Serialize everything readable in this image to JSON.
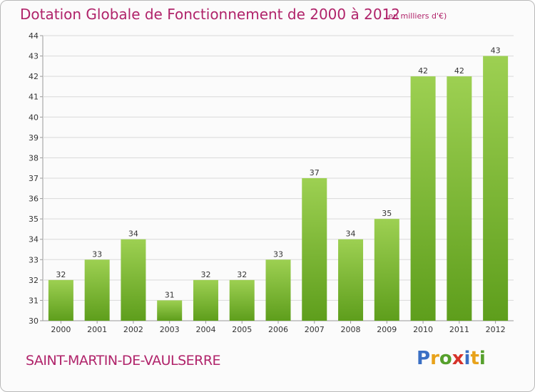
{
  "header": {
    "title": "Dotation Globale de Fonctionnement de 2000 à 2012",
    "unit": "(en milliers d'€)"
  },
  "footer": {
    "commune": "SAINT-MARTIN-DE-VAULSERRE",
    "logo_letters": [
      "P",
      "r",
      "o",
      "x",
      "i",
      "t",
      "i"
    ],
    "logo_colors": [
      "#3a6fc4",
      "#e8a21a",
      "#56a02c",
      "#d6322a",
      "#3a6fc4",
      "#e8a21a",
      "#56a02c"
    ]
  },
  "chart_data": {
    "type": "bar",
    "categories": [
      "2000",
      "2001",
      "2002",
      "2003",
      "2004",
      "2005",
      "2006",
      "2007",
      "2008",
      "2009",
      "2010",
      "2011",
      "2012"
    ],
    "values": [
      32,
      33,
      34,
      31,
      32,
      32,
      33,
      37,
      34,
      35,
      42,
      42,
      43
    ],
    "data_labels": [
      "32",
      "33",
      "34",
      "31",
      "32",
      "32",
      "33",
      "37",
      "34",
      "35",
      "42",
      "42",
      "43"
    ],
    "y_ticks": [
      30,
      31,
      32,
      33,
      34,
      35,
      36,
      37,
      38,
      39,
      40,
      41,
      42,
      43,
      44
    ],
    "ylim": [
      30,
      44
    ],
    "grid": true,
    "bar_color_top": "#9dd052",
    "bar_color_bottom": "#5e9e1c",
    "grid_color": "#d9d9d9"
  }
}
